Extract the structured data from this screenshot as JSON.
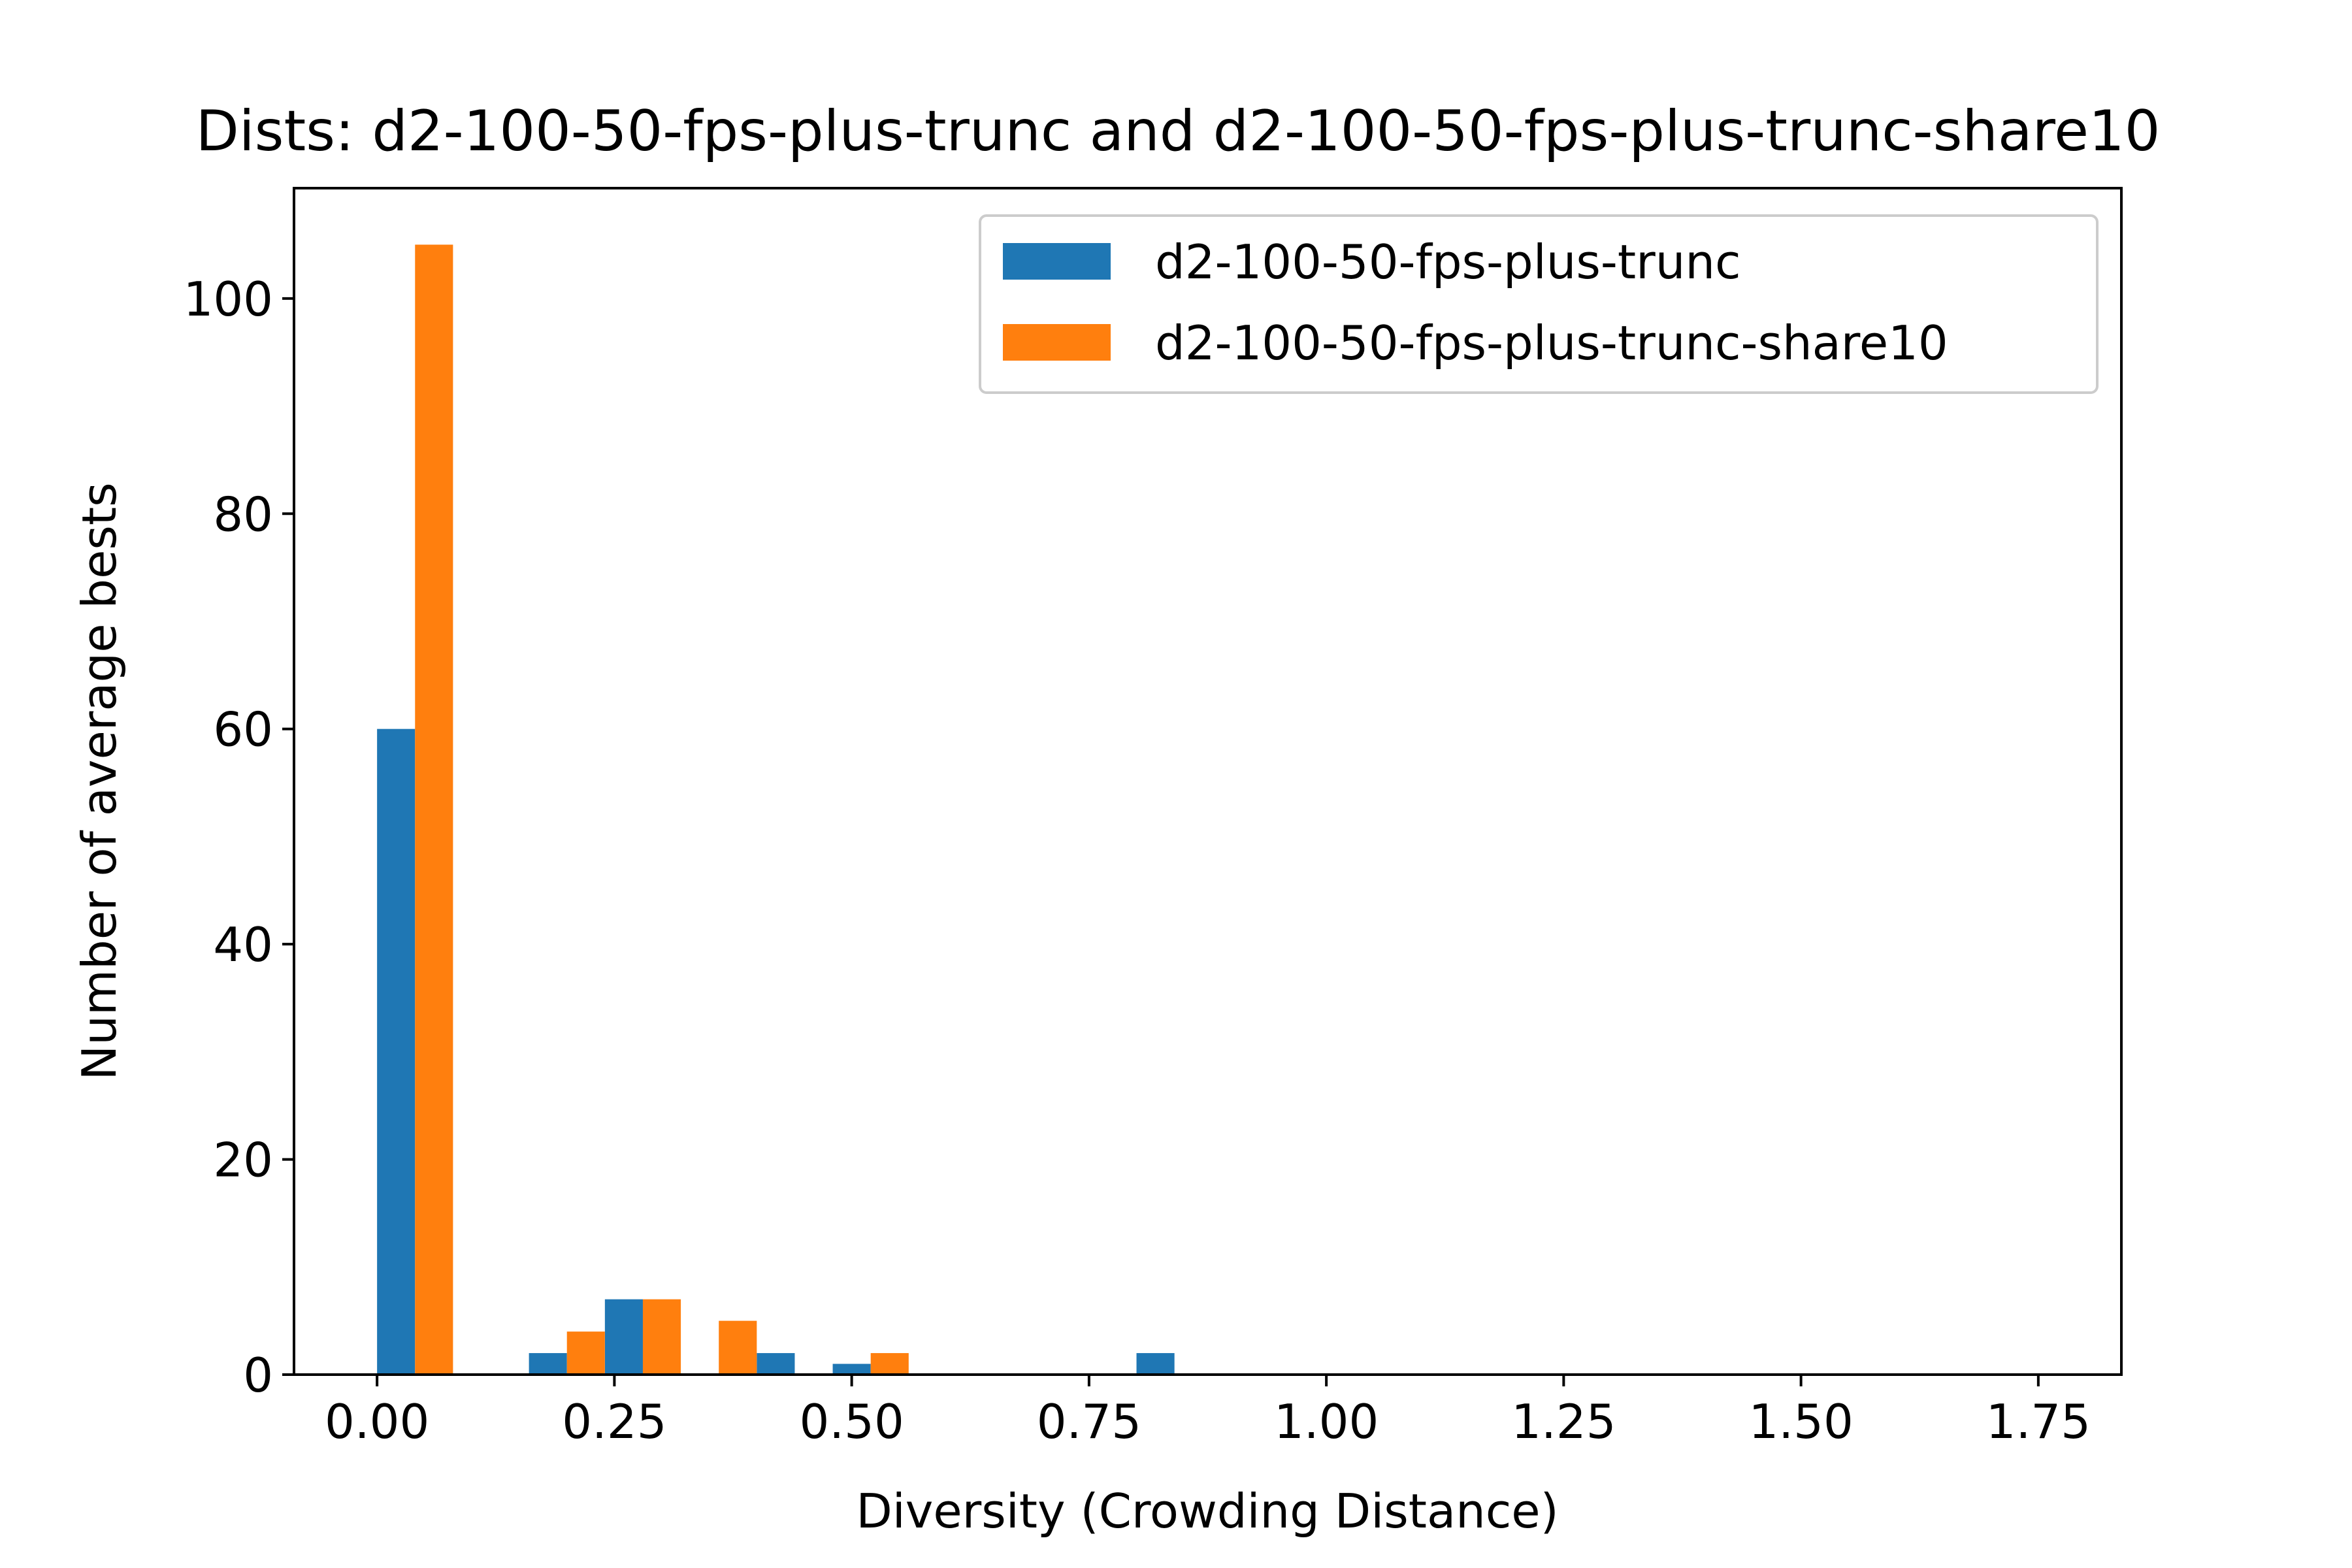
{
  "chart_data": {
    "type": "bar",
    "title": "Dists: d2-100-50-fps-plus-trunc and d2-100-50-fps-plus-trunc-share10",
    "xlabel": "Diversity (Crowding Distance)",
    "ylabel": "Number of average bests",
    "xlim": [
      -0.0875,
      1.8375
    ],
    "ylim": [
      0,
      110.25
    ],
    "xticks": [
      0.0,
      0.25,
      0.5,
      0.75,
      1.0,
      1.25,
      1.5,
      1.75
    ],
    "xtick_labels": [
      "0.00",
      "0.25",
      "0.50",
      "0.75",
      "1.00",
      "1.25",
      "1.50",
      "1.75"
    ],
    "yticks": [
      0,
      20,
      40,
      60,
      80,
      100
    ],
    "ytick_labels": [
      "0",
      "20",
      "40",
      "60",
      "80",
      "100"
    ],
    "bin_edges": [
      0.0,
      0.08,
      0.16,
      0.24,
      0.32,
      0.4,
      0.48,
      0.56,
      0.64,
      0.72,
      0.8,
      0.88,
      0.96,
      1.04,
      1.12,
      1.2,
      1.28,
      1.36,
      1.44,
      1.52,
      1.6,
      1.68,
      1.76
    ],
    "grid": false,
    "legend_position": "top-right",
    "series": [
      {
        "name": "d2-100-50-fps-plus-trunc",
        "color": "#1f77b4",
        "values": [
          60,
          0,
          2,
          7,
          0,
          2,
          1,
          0,
          0,
          0,
          2,
          0,
          0,
          0,
          0,
          0,
          0,
          0,
          0,
          0,
          0,
          0
        ]
      },
      {
        "name": "d2-100-50-fps-plus-trunc-share10",
        "color": "#ff7f0e",
        "values": [
          105,
          0,
          4,
          7,
          5,
          0,
          2,
          0,
          0,
          0,
          0,
          0,
          0,
          0,
          0,
          0,
          0,
          0,
          0,
          0,
          0,
          0
        ]
      }
    ]
  }
}
